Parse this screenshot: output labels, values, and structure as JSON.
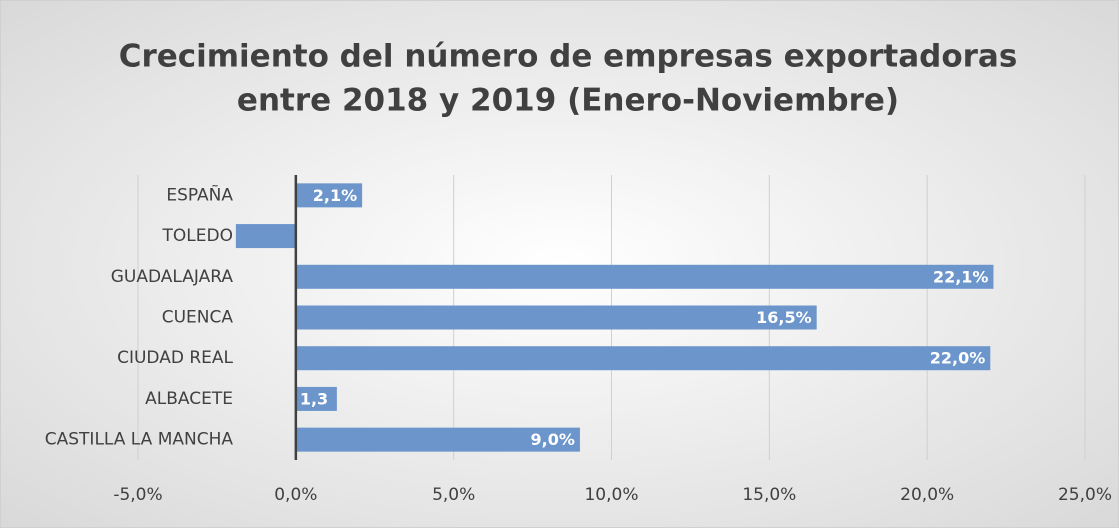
{
  "chart_data": {
    "type": "hbar",
    "title": [
      "Crecimiento del número de empresas exportadoras",
      "entre 2018 y 2019 (Enero-Noviembre)"
    ],
    "categories": [
      "ESPAÑA",
      "TOLEDO",
      "GUADALAJARA",
      "CUENCA",
      "CIUDAD REAL",
      "ALBACETE",
      "CASTILLA LA MANCHA"
    ],
    "values": [
      2.1,
      -1.9,
      22.1,
      16.5,
      22.0,
      1.3,
      9.0
    ],
    "value_labels": [
      "2,1%",
      null,
      "22,1%",
      "16,5%",
      "22,0%",
      "1,3",
      "9,0%"
    ],
    "color": "#6b95cb",
    "xlim": [
      -5,
      25
    ],
    "xticks": [
      {
        "value": -5,
        "label": "-5,0%"
      },
      {
        "value": 0,
        "label": "0,0%"
      },
      {
        "value": 5,
        "label": "5,0%"
      },
      {
        "value": 10,
        "label": "10,0%"
      },
      {
        "value": 15,
        "label": "15,0%"
      },
      {
        "value": 20,
        "label": "20,0%"
      },
      {
        "value": 25,
        "label": "25,0%"
      }
    ],
    "grid": true
  }
}
